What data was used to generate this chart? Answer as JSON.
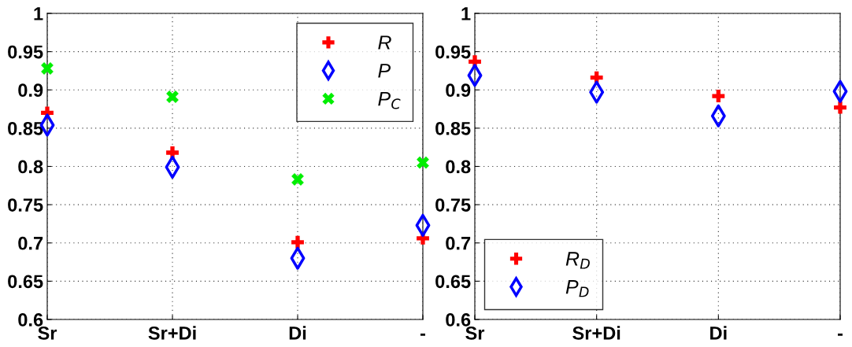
{
  "chart_data": [
    {
      "type": "scatter",
      "categories": [
        "Sr",
        "Sr+Di",
        "Di",
        "-"
      ],
      "ylim": [
        0.6,
        1
      ],
      "yticks": [
        0.6,
        0.65,
        0.7,
        0.75,
        0.8,
        0.85,
        0.9,
        0.95,
        1
      ],
      "grid": true,
      "legend": "top right",
      "series": [
        {
          "name": "R",
          "color": "#ff0000",
          "marker": "plus",
          "values": [
            0.87,
            0.818,
            0.701,
            0.706
          ]
        },
        {
          "name": "P",
          "color": "#0000ff",
          "marker": "diamond",
          "values": [
            0.854,
            0.799,
            0.68,
            0.723
          ]
        },
        {
          "name": "P$_{C}$",
          "color": "#00ee00",
          "marker": "cross",
          "values": [
            0.928,
            0.891,
            0.783,
            0.805
          ]
        }
      ]
    },
    {
      "type": "scatter",
      "categories": [
        "Sr",
        "Sr+Di",
        "Di",
        "-"
      ],
      "ylim": [
        0.6,
        1
      ],
      "yticks": [
        0.6,
        0.65,
        0.7,
        0.75,
        0.8,
        0.85,
        0.9,
        0.95,
        1
      ],
      "grid": true,
      "legend": "bottom left",
      "series": [
        {
          "name": "R$_{D}$",
          "color": "#ff0000",
          "marker": "plus",
          "values": [
            0.937,
            0.916,
            0.892,
            0.877
          ]
        },
        {
          "name": "P$_{D}$",
          "color": "#0000ff",
          "marker": "diamond",
          "values": [
            0.919,
            0.897,
            0.866,
            0.898
          ]
        }
      ]
    }
  ]
}
